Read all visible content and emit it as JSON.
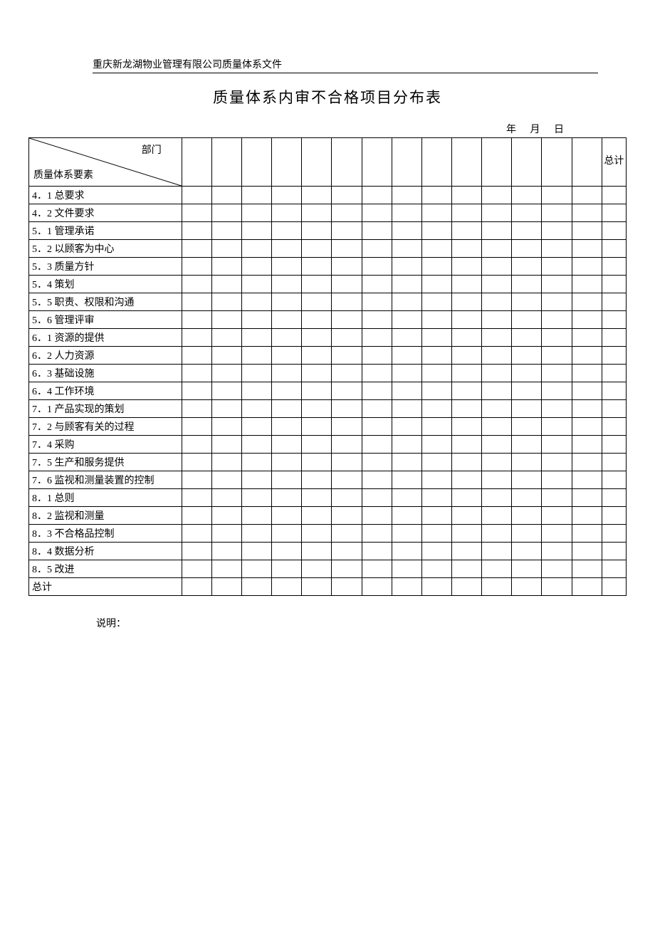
{
  "header": {
    "company_text": "重庆新龙湖物业管理有限公司质量体系文件"
  },
  "title": "质量体系内审不合格项目分布表",
  "date_line": "年 月 日",
  "table": {
    "corner_top": "部门",
    "corner_bottom": "质量体系要素",
    "total_label": "总计",
    "rows": [
      "4．1 总要求",
      "4．2 文件要求",
      "5．1 管理承诺",
      "5．2 以顾客为中心",
      "5．3 质量方针",
      "5．4 策划",
      "5．5 职责、权限和沟通",
      "5．6 管理评审",
      "6．1 资源的提供",
      "6．2 人力资源",
      "6．3 基础设施",
      "6．4 工作环境",
      "7．1 产品实现的策划",
      "7．2 与顾客有关的过程",
      "7．4 采购",
      "7．5 生产和服务提供",
      "7．6 监视和测量装置的控制",
      "8．1 总则",
      "8．2 监视和测量",
      "8．3 不合格品控制",
      "8．4 数据分析",
      "8．5 改进",
      "总计"
    ],
    "data_columns_count": 14
  },
  "note": "说明："
}
